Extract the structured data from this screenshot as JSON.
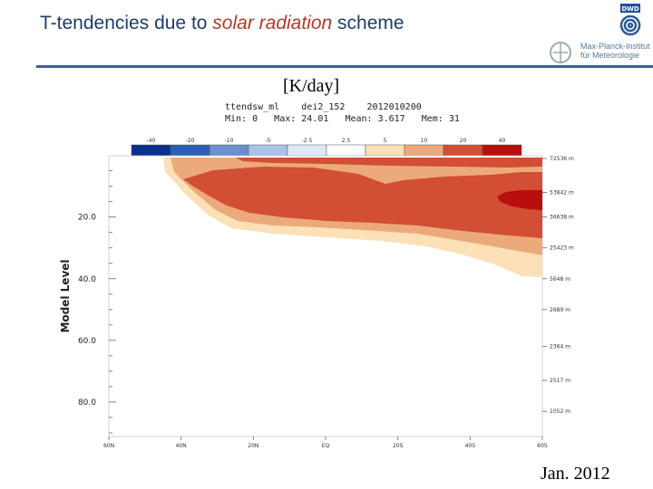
{
  "slide": {
    "title_prefix": "T-tendencies due to ",
    "title_emph": "solar radiation",
    "title_suffix": " scheme",
    "unit": "[K/day]",
    "date": "Jan. 2012",
    "logo_line1": "Max-Planck-Institut",
    "logo_line2": "für Meteorologie",
    "logo_badge": "DWD"
  },
  "plot_info": {
    "line1": "ttendsw_ml    dei2_152    2012010200",
    "line2": "Min: 0   Max: 24.01   Mean: 3.617   Mem: 31"
  },
  "colors": {
    "title": "#1f3c6e",
    "accent": "#b43a2a"
  },
  "chart_data": {
    "type": "heatmap",
    "title": "ttendsw_ml",
    "ylabel": "Model Level",
    "xlabel": "",
    "ylim": [
      1,
      90
    ],
    "y_inverted": true,
    "colorbar": {
      "levels": [
        "-40",
        "-20",
        "-10",
        "-5",
        "-2.5",
        "2.5",
        "5",
        "10",
        "20",
        "40"
      ],
      "colors": [
        "#0a2f8c",
        "#2a5fb5",
        "#6a8fd0",
        "#a9c3e8",
        "#dde9f7",
        "#ffffff",
        "#fbe0b8",
        "#ecaa7c",
        "#d24e35",
        "#b80e0e"
      ]
    },
    "y_ticks": [
      20,
      40,
      60,
      80
    ],
    "y_tick_labels": [
      "20.0",
      "40.0",
      "60.0",
      "80.0"
    ],
    "right_axis_labels": [
      "72536 m",
      "53842 m",
      "36638 m",
      "25423 m",
      "5648 m",
      "2689 m",
      "2364 m",
      "2517 m",
      "1052 m"
    ],
    "right_axis_levels": [
      1,
      12,
      20,
      30,
      40,
      50,
      62,
      73,
      83
    ],
    "x_tick_labels": [
      "60N",
      "40N",
      "20N",
      "EQ",
      "20S",
      "40S",
      "60S"
    ],
    "regions": [
      {
        "name": "pale-band",
        "value_range": "2.5-5",
        "color_index": 6
      },
      {
        "name": "orange-band",
        "value_range": "5-10",
        "color_index": 7
      },
      {
        "name": "red-band",
        "value_range": "10-20",
        "color_index": 8
      },
      {
        "name": "max-core",
        "value_range": "20-40",
        "color_index": 9
      }
    ]
  }
}
